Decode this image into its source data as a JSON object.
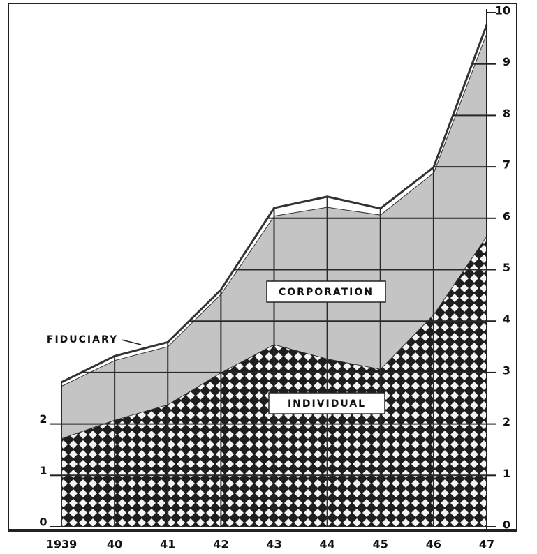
{
  "chart_data": {
    "type": "area",
    "stacked": true,
    "categories": [
      "1939",
      "40",
      "41",
      "42",
      "43",
      "44",
      "45",
      "46",
      "47"
    ],
    "series": [
      {
        "name": "INDIVIDUAL",
        "color": "#1e1e1e",
        "values": [
          1.72,
          2.08,
          2.38,
          3.0,
          3.55,
          3.27,
          3.07,
          4.13,
          5.66
        ]
      },
      {
        "name": "CORPORATION",
        "color": "#c4c4c4",
        "values": [
          1.02,
          1.16,
          1.13,
          1.53,
          2.5,
          2.95,
          3.0,
          2.76,
          3.95
        ]
      },
      {
        "name": "FIDUCIARY",
        "color": "#ffffff",
        "values": [
          0.07,
          0.08,
          0.08,
          0.08,
          0.15,
          0.2,
          0.12,
          0.1,
          0.15
        ]
      }
    ],
    "ylim": [
      0,
      10
    ],
    "yticks": [
      0,
      1,
      2,
      3,
      4,
      5,
      6,
      7,
      8,
      9,
      10
    ],
    "y2lim": [
      0,
      10
    ],
    "y2ticks": [
      0,
      1,
      2
    ],
    "grid": true
  }
}
